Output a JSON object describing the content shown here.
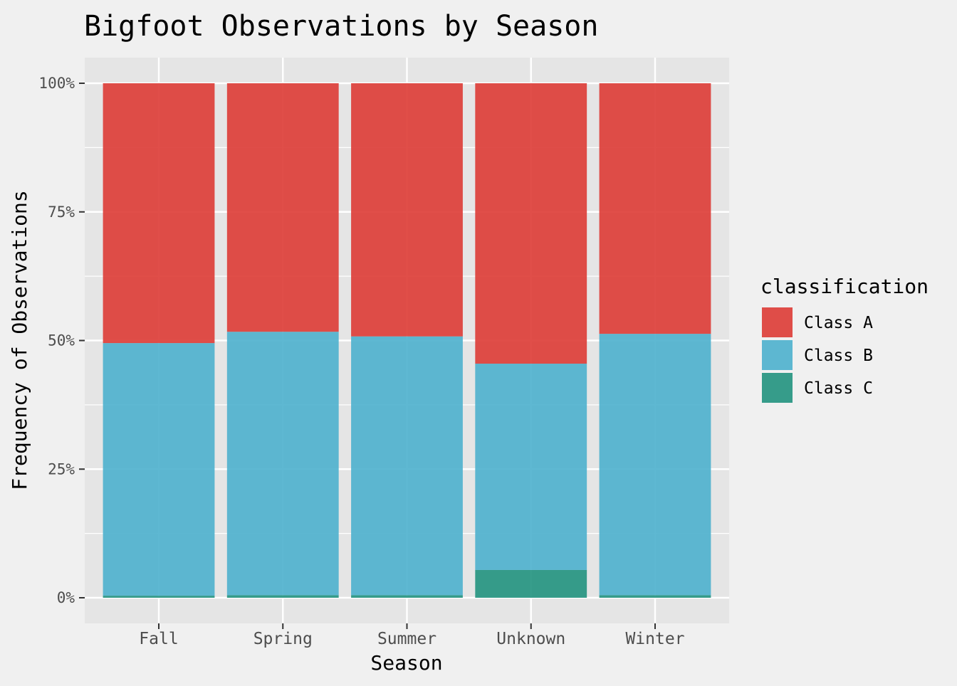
{
  "chart_data": {
    "type": "bar",
    "stacked": true,
    "percent": true,
    "title": "Bigfoot Observations by Season",
    "xlabel": "Season",
    "ylabel": "Frequency of Observations",
    "categories": [
      "Fall",
      "Spring",
      "Summer",
      "Unknown",
      "Winter"
    ],
    "y_ticks": [
      "0%",
      "25%",
      "50%",
      "75%",
      "100%"
    ],
    "ylim": [
      0,
      1
    ],
    "grid": true,
    "legend": {
      "title": "classification",
      "position": "right"
    },
    "series": [
      {
        "name": "Class C",
        "color": "#21927e",
        "values": [
          0.004,
          0.005,
          0.005,
          0.054,
          0.005
        ]
      },
      {
        "name": "Class B",
        "color": "#4cb0cd",
        "values": [
          0.491,
          0.512,
          0.503,
          0.401,
          0.508
        ]
      },
      {
        "name": "Class A",
        "color": "#dd3b35",
        "values": [
          0.505,
          0.483,
          0.492,
          0.545,
          0.487
        ]
      }
    ],
    "bar_opacity": 0.9,
    "panel_background": "#e5e5e5",
    "grid_color": "#ffffff"
  }
}
